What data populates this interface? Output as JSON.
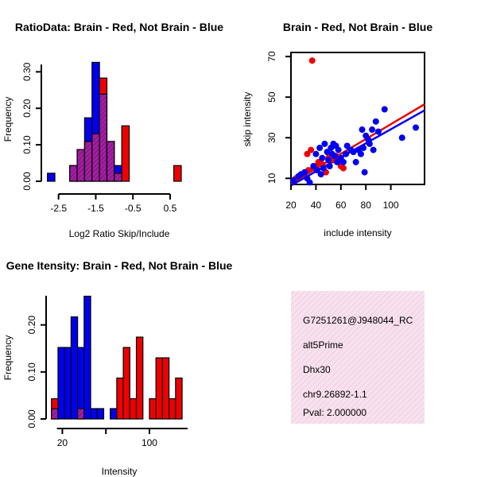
{
  "chart_data": [
    {
      "id": "ratio_hist",
      "type": "bar",
      "title": "RatioData: Brain - Red, Not Brain - Blue",
      "xlabel": "Log2 Ratio Skip/Include",
      "ylabel": "Frequency",
      "xlim": [
        -2.75,
        0.95
      ],
      "ylim": [
        0,
        0.34
      ],
      "xticks": [
        "-2.5",
        "-1.5",
        "-0.5",
        "0.5"
      ],
      "xtick_values": [
        -2.5,
        -1.5,
        -0.5,
        0.5
      ],
      "yticks": [
        "0.00",
        "0.10",
        "0.20",
        "0.30"
      ],
      "ytick_values": [
        0,
        0.1,
        0.2,
        0.3
      ],
      "bin_width": 0.2,
      "series": [
        {
          "name": "Not Brain",
          "color": "#0000ee",
          "bins": [
            [
              -2.8,
              0.022
            ],
            [
              -2.2,
              0.043
            ],
            [
              -2.0,
              0.087
            ],
            [
              -1.8,
              0.174
            ],
            [
              -1.6,
              0.326
            ],
            [
              -1.4,
              0.239
            ],
            [
              -1.2,
              0.109
            ],
            [
              -1.0,
              0.043
            ]
          ]
        },
        {
          "name": "Brain",
          "color": "#ee0000",
          "bins": [
            [
              -2.2,
              0.043
            ],
            [
              -2.0,
              0.087
            ],
            [
              -1.8,
              0.109
            ],
            [
              -1.6,
              0.13
            ],
            [
              -1.4,
              0.283
            ],
            [
              -1.2,
              0.109
            ],
            [
              -1.0,
              0.022
            ],
            [
              -0.8,
              0.152
            ],
            [
              0.6,
              0.043
            ]
          ]
        }
      ]
    },
    {
      "id": "scatter",
      "type": "scatter",
      "title": "Brain - Red, Not Brain - Blue",
      "xlabel": "include intensity",
      "ylabel": "skip intensity",
      "xlim": [
        20,
        127
      ],
      "ylim": [
        7,
        72
      ],
      "xticks": [
        "20",
        "40",
        "60",
        "80",
        "100"
      ],
      "xtick_values": [
        20,
        40,
        60,
        80,
        100
      ],
      "yticks": [
        "10",
        "30",
        "50",
        "70"
      ],
      "ytick_values": [
        10,
        30,
        50,
        70
      ],
      "series": [
        {
          "name": "Brain",
          "color": "#ee0000",
          "points": [
            [
              37,
              68
            ],
            [
              33,
              22
            ],
            [
              36,
              24
            ],
            [
              30,
              12
            ],
            [
              34,
              14
            ],
            [
              40,
              16
            ],
            [
              48,
              13
            ],
            [
              54,
              19
            ],
            [
              60,
              16
            ],
            [
              62,
              15
            ],
            [
              45,
              17
            ],
            [
              27,
              11
            ],
            [
              24,
              10
            ],
            [
              38,
              15
            ],
            [
              42,
              18
            ],
            [
              56,
              21
            ],
            [
              50,
              20
            ]
          ]
        },
        {
          "name": "Not Brain",
          "color": "#0000ee",
          "points": [
            [
              22,
              9
            ],
            [
              26,
              11
            ],
            [
              28,
              12
            ],
            [
              31,
              13
            ],
            [
              33,
              10
            ],
            [
              35,
              8
            ],
            [
              38,
              16
            ],
            [
              40,
              22
            ],
            [
              41,
              14
            ],
            [
              43,
              25
            ],
            [
              44,
              12
            ],
            [
              45,
              20
            ],
            [
              46,
              15
            ],
            [
              47,
              27
            ],
            [
              49,
              23
            ],
            [
              50,
              19
            ],
            [
              51,
              16
            ],
            [
              52,
              25
            ],
            [
              53,
              22
            ],
            [
              54,
              27
            ],
            [
              55,
              21
            ],
            [
              56,
              26
            ],
            [
              57,
              18
            ],
            [
              58,
              24
            ],
            [
              60,
              20
            ],
            [
              62,
              18
            ],
            [
              64,
              22
            ],
            [
              65,
              26
            ],
            [
              68,
              24
            ],
            [
              70,
              23
            ],
            [
              72,
              18
            ],
            [
              74,
              24
            ],
            [
              76,
              22
            ],
            [
              77,
              34
            ],
            [
              78,
              25
            ],
            [
              79,
              13
            ],
            [
              80,
              31
            ],
            [
              82,
              29
            ],
            [
              83,
              27
            ],
            [
              85,
              34
            ],
            [
              86,
              24
            ],
            [
              88,
              38
            ],
            [
              90,
              33
            ],
            [
              95,
              44
            ],
            [
              109,
              30
            ],
            [
              120,
              35
            ]
          ]
        }
      ],
      "fit_lines": [
        {
          "name": "Brain fit",
          "color": "#ee0000",
          "from": [
            20,
            7.5
          ],
          "to": [
            127,
            46.5
          ]
        },
        {
          "name": "Not Brain fit",
          "color": "#0000ee",
          "from": [
            20,
            6.5
          ],
          "to": [
            127,
            43.5
          ]
        }
      ]
    },
    {
      "id": "intensity_hist",
      "type": "bar",
      "title": "Gene Itensity: Brain - Red, Not Brain - Blue",
      "xlabel": "Intensity",
      "ylabel": "Frequency",
      "xlim": [
        8,
        138
      ],
      "ylim": [
        0,
        0.262
      ],
      "xticks": [
        "20",
        "100"
      ],
      "xtick_values": [
        20,
        100
      ],
      "xtick_minor_values": [
        60
      ],
      "yticks": [
        "0.00",
        "0.10",
        "0.20"
      ],
      "ytick_values": [
        0,
        0.1,
        0.2
      ],
      "bin_width": 6,
      "series": [
        {
          "name": "Not Brain",
          "color": "#0000ee",
          "bins": [
            [
              10,
              0.022
            ],
            [
              16,
              0.152
            ],
            [
              22,
              0.152
            ],
            [
              28,
              0.217
            ],
            [
              34,
              0.152
            ],
            [
              40,
              0.261
            ],
            [
              46,
              0.022
            ],
            [
              52,
              0.022
            ],
            [
              64,
              0.022
            ]
          ]
        },
        {
          "name": "Brain",
          "color": "#ee0000",
          "bins": [
            [
              10,
              0.043
            ],
            [
              34,
              0.022
            ],
            [
              70,
              0.087
            ],
            [
              76,
              0.152
            ],
            [
              82,
              0.043
            ],
            [
              88,
              0.174
            ],
            [
              100,
              0.043
            ],
            [
              106,
              0.13
            ],
            [
              112,
              0.13
            ],
            [
              118,
              0.043
            ],
            [
              124,
              0.087
            ]
          ]
        }
      ]
    }
  ],
  "info_panel": {
    "lines": [
      "G7251261@J948044_RC",
      "alt5Prime",
      "Dhx30",
      "chr9.26892-1.1"
    ],
    "pval": "Pval: 2.000000",
    "pval_color": "#8b0000",
    "bg_color": "#f8e1ef",
    "hatch_color": "#ecbcd8"
  },
  "colors": {
    "blue": "#0000ee",
    "red": "#ee0000",
    "overlap": "#a020a0",
    "overlap_hatch": "#7a007a"
  }
}
